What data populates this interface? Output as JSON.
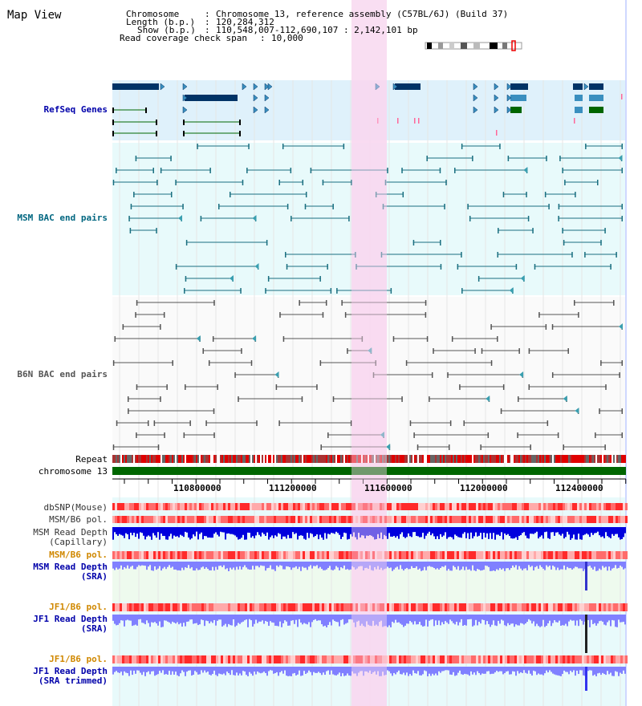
{
  "title": "Map View",
  "info": {
    "chromosome_key": "Chromosome",
    "chromosome_value": "Chromosome 13, reference assembly (C57BL/6J) (Build 37)",
    "length_key": "Length (b.p.)",
    "length_value": "120,284,312",
    "show_key": "Show (b.p.)",
    "show_value": "110,548,007-112,690,107 : 2,142,101 bp",
    "coverage_key": "Read coverage check span",
    "coverage_value": "10,000"
  },
  "tracks": {
    "refseq": "RefSeq Genes",
    "msm_bac": "MSM BAC end pairs",
    "b6n_bac": "B6N BAC end pairs",
    "repeat": "Repeat",
    "chromosome": "chromosome 13",
    "dbsnp": "dbSNP(Mouse)",
    "msm_b6_pol_1": "MSM/B6 pol.",
    "msm_read_depth_cap_1": "MSM Read Depth",
    "msm_read_depth_cap_2": "(Capillary)",
    "msm_b6_pol_2": "MSM/B6 pol.",
    "msm_read_depth_sra_1": "MSM Read Depth",
    "msm_read_depth_sra_2": "(SRA)",
    "jf1_b6_pol_1": "JF1/B6 pol.",
    "jf1_read_depth_sra_1": "JF1 Read Depth",
    "jf1_read_depth_sra_2": "(SRA)",
    "jf1_b6_pol_2": "JF1/B6 pol.",
    "jf1_read_depth_trim_1": "JF1 Read Depth",
    "jf1_read_depth_trim_2": "(SRA trimmed)"
  },
  "axis": {
    "ticks": [
      "110800000",
      "111200000",
      "111600000",
      "112000000",
      "112400000"
    ]
  },
  "colors": {
    "highlight": "#f8d8f0",
    "refseq_bg": "#dff1fb",
    "track_bg": "#e8fafb",
    "gene_dark": "#003366",
    "gene_mid": "#3a8fbf",
    "gene_green": "#006600",
    "msm_line": "#1a6f80",
    "b6n_line": "#555555",
    "chrom_bar": "#006600",
    "depth_dark": "#0000dd",
    "depth_light": "#8080ff",
    "label_blue": "#0000aa",
    "label_teal": "#006680",
    "label_orange": "#d08800"
  }
}
